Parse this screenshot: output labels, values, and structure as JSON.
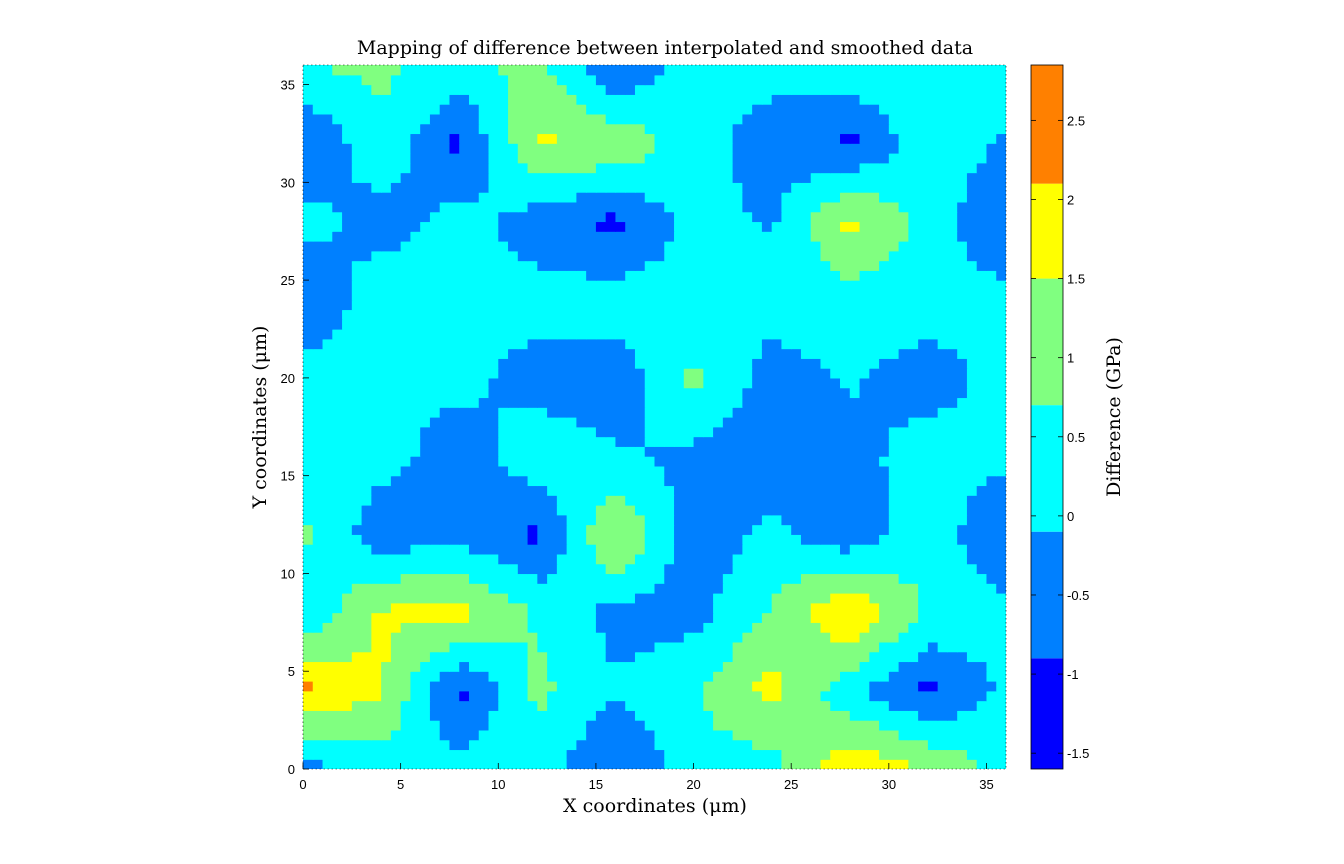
{
  "chart_data": {
    "type": "heatmap",
    "title": "Mapping of difference between interpolated and smoothed data",
    "xlabel": "X coordinates (μm)",
    "ylabel": "Y coordinates (μm)",
    "colorbar_label": "Difference (GPa)",
    "xlim": [
      0,
      36
    ],
    "ylim": [
      0,
      36
    ],
    "xticks": [
      0,
      5,
      10,
      15,
      20,
      25,
      30,
      35
    ],
    "yticks": [
      0,
      5,
      10,
      15,
      20,
      25,
      30,
      35
    ],
    "grid": false,
    "colorbar": {
      "placement": "right",
      "range": [
        -1.6,
        2.85
      ],
      "ticks": [
        -1.5,
        -1,
        -0.5,
        0,
        0.5,
        1,
        1.5,
        2,
        2.5
      ],
      "levels": [
        {
          "from": -1.6,
          "to": -0.9,
          "color": "#0000ff"
        },
        {
          "from": -0.9,
          "to": -0.1,
          "color": "#0080ff"
        },
        {
          "from": -0.1,
          "to": 0.7,
          "color": "#00ffff"
        },
        {
          "from": 0.7,
          "to": 1.5,
          "color": "#80ff80"
        },
        {
          "from": 1.5,
          "to": 2.1,
          "color": "#ffff00"
        },
        {
          "from": 2.1,
          "to": 2.85,
          "color": "#ff8000"
        }
      ]
    },
    "grid_spacing": 4,
    "x": [
      0,
      4,
      8,
      12,
      16,
      20,
      24,
      28,
      32,
      36
    ],
    "y": [
      0,
      4,
      8,
      12,
      16,
      20,
      24,
      28,
      32,
      36
    ],
    "z": [
      [
        -0.4,
        0.3,
        0.2,
        0.3,
        -1.0,
        0.4,
        0.3,
        2.2,
        1.5,
        0.4
      ],
      [
        2.3,
        1.6,
        -1.1,
        0.9,
        0.0,
        0.6,
        1.8,
        0.1,
        -1.1,
        0.1
      ],
      [
        0.0,
        1.6,
        1.8,
        0.6,
        -0.4,
        -0.4,
        0.8,
        2.3,
        0.6,
        0.1
      ],
      [
        0.9,
        -0.6,
        -0.4,
        -1.1,
        1.7,
        -0.6,
        0.1,
        -0.7,
        0.5,
        -1.0
      ],
      [
        0.2,
        0.2,
        -0.5,
        0.4,
        0.0,
        -0.3,
        -0.6,
        -0.4,
        0.3,
        0.1
      ],
      [
        0.4,
        0.1,
        0.1,
        -0.4,
        -0.6,
        0.9,
        -0.5,
        0.0,
        -0.5,
        0.2
      ],
      [
        -1.0,
        0.5,
        0.2,
        0.2,
        0.3,
        0.2,
        0.3,
        0.3,
        0.3,
        0.2
      ],
      [
        0.3,
        -0.5,
        0.2,
        -0.5,
        -1.1,
        0.2,
        -0.2,
        1.7,
        0.4,
        -1.0
      ],
      [
        -1.0,
        0.5,
        -1.1,
        1.6,
        1.4,
        0.2,
        -0.5,
        -1.1,
        0.5,
        -0.2
      ],
      [
        0.7,
        0.9,
        0.4,
        1.0,
        -1.0,
        0.4,
        0.2,
        0.6,
        0.3,
        0.5
      ]
    ]
  }
}
